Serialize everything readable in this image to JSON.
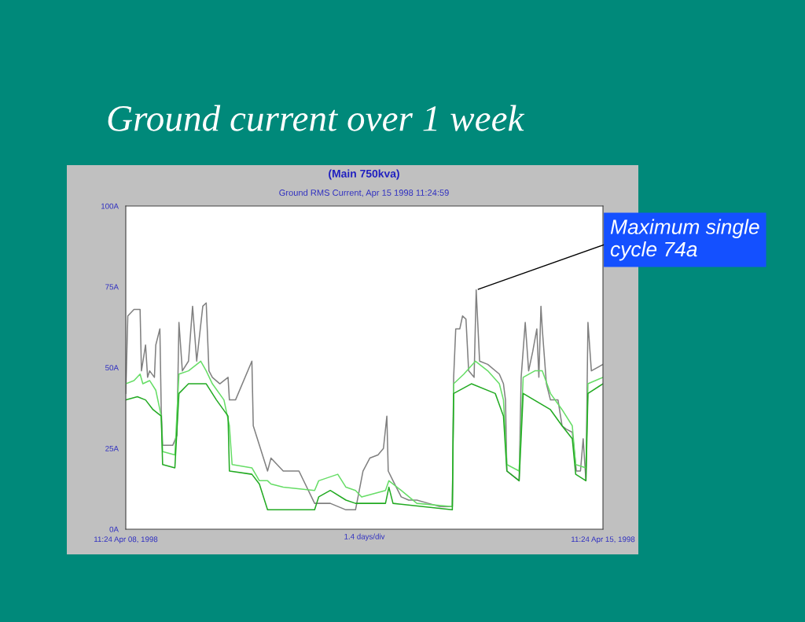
{
  "chart_data": {
    "type": "line",
    "title": "Ground current over 1 week",
    "subtitle": "(Main 750kva)",
    "xlabel": "1.4 days/div",
    "annotations": [
      "Ground RMS Current, Apr 15 1998 11:24:59",
      {
        "text": "Maximum single cycle 74a",
        "x": "1998-04-13T14:46",
        "y": 74
      }
    ],
    "xlim": [
      "1998-04-08T11:24",
      "1998-04-15T11:24"
    ],
    "xticks": [
      {
        "value": "1998-04-08T11:24",
        "label": "11:24 Apr 08, 1998"
      },
      {
        "value": "1998-04-15T11:24",
        "label": "11:24 Apr 15, 1998"
      }
    ],
    "ylim": [
      0,
      100
    ],
    "yticks": [
      {
        "value": 0,
        "label": "0A"
      },
      {
        "value": 25,
        "label": "25A"
      },
      {
        "value": 50,
        "label": "50A"
      },
      {
        "value": 75,
        "label": "75A"
      },
      {
        "value": 100,
        "label": "100A"
      }
    ],
    "series": [
      {
        "color": "#808080",
        "x": [
          "1998-04-08T11:24",
          "1998-04-08T12:07",
          "1998-04-08T14:17",
          "1998-04-08T16:26",
          "1998-04-08T16:55",
          "1998-04-08T18:22",
          "1998-04-08T19:05",
          "1998-04-08T19:48",
          "1998-04-08T21:29",
          "1998-04-08T21:58",
          "1998-04-08T23:24",
          "1998-04-08T23:53",
          "1998-04-09T00:22",
          "1998-04-09T03:58",
          "1998-04-09T05:24",
          "1998-04-09T06:07",
          "1998-04-09T07:19",
          "1998-04-09T09:29",
          "1998-04-09T10:55",
          "1998-04-09T12:22",
          "1998-04-09T14:31",
          "1998-04-09T15:43",
          "1998-04-09T16:41",
          "1998-04-09T17:53",
          "1998-04-09T20:31",
          "1998-04-09T23:24",
          "1998-04-09T23:53",
          "1998-04-10T02:02",
          "1998-04-10T07:48",
          "1998-04-10T08:17",
          "1998-04-10T13:19",
          "1998-04-10T14:31",
          "1998-04-10T18:50",
          "1998-04-11T00:22",
          "1998-04-11T05:53",
          "1998-04-11T11:24",
          "1998-04-11T16:55",
          "1998-04-11T20:17",
          "1998-04-11T22:55",
          "1998-04-12T01:19",
          "1998-04-12T04:12",
          "1998-04-12T06:07",
          "1998-04-12T07:19",
          "1998-04-12T07:48",
          "1998-04-12T09:29",
          "1998-04-12T12:22",
          "1998-04-12T15:00",
          "1998-04-12T17:53",
          "1998-04-12T21:58",
          "1998-04-13T02:02",
          "1998-04-13T06:22",
          "1998-04-13T06:50",
          "1998-04-13T07:34",
          "1998-04-13T09:00",
          "1998-04-13T09:58",
          "1998-04-13T11:10",
          "1998-04-13T12:07",
          "1998-04-13T14:02",
          "1998-04-13T14:46",
          "1998-04-13T15:58",
          "1998-04-13T18:50",
          "1998-04-13T22:55",
          "1998-04-14T00:22",
          "1998-04-14T01:05",
          "1998-04-14T01:34",
          "1998-04-14T03:00",
          "1998-04-14T05:53",
          "1998-04-14T06:36",
          "1998-04-14T08:02",
          "1998-04-14T09:14",
          "1998-04-14T10:41",
          "1998-04-14T12:07",
          "1998-04-14T12:50",
          "1998-04-14T13:34",
          "1998-04-14T14:02",
          "1998-04-14T15:29",
          "1998-04-14T16:55",
          "1998-04-14T19:34",
          "1998-04-14T21:00",
          "1998-04-14T22:26",
          "1998-04-15T00:36",
          "1998-04-15T02:02",
          "1998-04-15T03:29",
          "1998-04-15T04:26",
          "1998-04-15T05:24",
          "1998-04-15T06:07",
          "1998-04-15T07:19",
          "1998-04-15T11:24"
        ],
        "values": [
          42,
          66,
          68,
          68,
          49,
          57,
          47,
          49,
          47,
          57,
          62,
          37,
          26,
          26,
          29,
          64,
          49,
          52,
          69,
          52,
          69,
          70,
          49,
          47,
          45,
          47,
          40,
          40,
          52,
          32,
          18,
          22,
          18,
          18,
          8,
          8,
          6,
          6,
          18,
          22,
          23,
          25,
          35,
          18,
          15,
          10,
          9,
          9,
          8,
          7,
          7,
          47,
          62,
          62,
          66,
          65,
          49,
          47,
          74,
          52,
          51,
          48,
          45,
          40,
          18,
          17,
          15,
          47,
          64,
          49,
          55,
          62,
          47,
          69,
          62,
          45,
          40,
          40,
          32,
          31,
          30,
          18,
          18,
          28,
          15,
          64,
          49,
          51
        ]
      },
      {
        "color": "#66dd66",
        "x": [
          "1998-04-08T11:24",
          "1998-04-08T14:17",
          "1998-04-08T16:26",
          "1998-04-08T17:24",
          "1998-04-08T19:48",
          "1998-04-08T21:58",
          "1998-04-08T23:53",
          "1998-04-09T00:22",
          "1998-04-09T04:41",
          "1998-04-09T06:07",
          "1998-04-09T09:29",
          "1998-04-09T13:48",
          "1998-04-09T15:43",
          "1998-04-09T17:53",
          "1998-04-09T21:58",
          "1998-04-09T23:53",
          "1998-04-10T00:50",
          "1998-04-10T07:48",
          "1998-04-10T10:26",
          "1998-04-10T13:19",
          "1998-04-10T14:31",
          "1998-04-10T18:50",
          "1998-04-11T05:53",
          "1998-04-11T07:19",
          "1998-04-11T14:02",
          "1998-04-11T16:55",
          "1998-04-11T20:17",
          "1998-04-11T22:26",
          "1998-04-12T06:50",
          "1998-04-12T08:02",
          "1998-04-12T12:22",
          "1998-04-12T17:53",
          "1998-04-13T06:22",
          "1998-04-13T06:50",
          "1998-04-13T10:26",
          "1998-04-13T14:31",
          "1998-04-13T18:50",
          "1998-04-13T22:55",
          "1998-04-14T00:22",
          "1998-04-14T01:34",
          "1998-04-14T05:53",
          "1998-04-14T07:19",
          "1998-04-14T11:24",
          "1998-04-14T14:02",
          "1998-04-14T16:55",
          "1998-04-14T21:00",
          "1998-04-15T00:36",
          "1998-04-15T01:48",
          "1998-04-15T05:24",
          "1998-04-15T06:07",
          "1998-04-15T11:24"
        ],
        "values": [
          45,
          46,
          48,
          45,
          46,
          43,
          35,
          24,
          23,
          48,
          49,
          52,
          49,
          45,
          40,
          32,
          20,
          19,
          15,
          15,
          14,
          13,
          12,
          15,
          17,
          13,
          12,
          10,
          12,
          15,
          12,
          8,
          7,
          45,
          48,
          52,
          49,
          45,
          40,
          20,
          18,
          47,
          49,
          49,
          42,
          37,
          32,
          20,
          19,
          45,
          47
        ]
      },
      {
        "color": "#22aa22",
        "x": [
          "1998-04-08T11:24",
          "1998-04-08T15:29",
          "1998-04-08T18:22",
          "1998-04-08T21:00",
          "1998-04-08T23:53",
          "1998-04-09T00:22",
          "1998-04-09T04:41",
          "1998-04-09T06:07",
          "1998-04-09T09:29",
          "1998-04-09T15:43",
          "1998-04-09T19:19",
          "1998-04-09T23:24",
          "1998-04-09T23:53",
          "1998-04-10T07:48",
          "1998-04-10T10:26",
          "1998-04-10T13:19",
          "1998-04-11T05:53",
          "1998-04-11T07:19",
          "1998-04-11T11:24",
          "1998-04-11T16:55",
          "1998-04-11T20:17",
          "1998-04-11T22:26",
          "1998-04-12T06:50",
          "1998-04-12T08:02",
          "1998-04-12T09:29",
          "1998-04-13T06:22",
          "1998-04-13T06:50",
          "1998-04-13T13:05",
          "1998-04-13T21:29",
          "1998-04-14T00:22",
          "1998-04-14T01:34",
          "1998-04-14T05:53",
          "1998-04-14T07:19",
          "1998-04-14T16:55",
          "1998-04-14T21:00",
          "1998-04-15T00:36",
          "1998-04-15T01:48",
          "1998-04-15T05:24",
          "1998-04-15T06:07",
          "1998-04-15T11:24"
        ],
        "values": [
          40,
          41,
          40,
          37,
          35,
          20,
          19,
          42,
          45,
          45,
          40,
          35,
          18,
          17,
          14,
          6,
          6,
          10,
          12,
          9,
          8,
          8,
          8,
          13,
          8,
          6,
          42,
          45,
          42,
          35,
          18,
          15,
          42,
          37,
          32,
          28,
          17,
          15,
          42,
          45
        ]
      }
    ]
  }
}
